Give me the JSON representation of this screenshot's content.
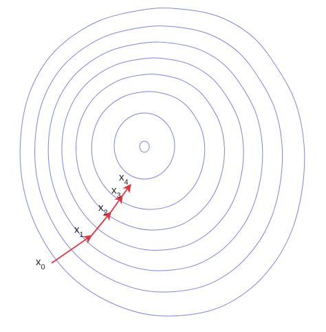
{
  "diagram": {
    "contour_color": "#8080e8",
    "path_color": "#e8303c",
    "label_color": "#222222",
    "contour_count": 8,
    "points": [
      {
        "base": "x",
        "sub": "0"
      },
      {
        "base": "x",
        "sub": "1"
      },
      {
        "base": "x",
        "sub": "2"
      },
      {
        "base": "x",
        "sub": "3"
      },
      {
        "base": "x",
        "sub": "4"
      }
    ]
  }
}
